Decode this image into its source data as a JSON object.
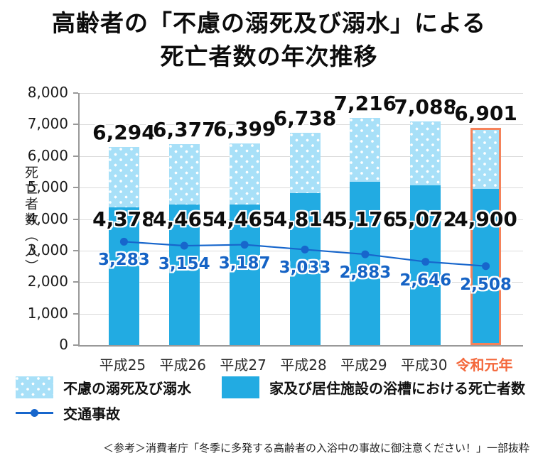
{
  "title": {
    "line1": "高齢者の「不慮の溺死及び溺水」による",
    "line2": "死亡者数の年次推移"
  },
  "chart_data": {
    "type": "bar+line",
    "title": "高齢者の「不慮の溺死及び溺水」による死亡者数の年次推移",
    "categories": [
      "平成25",
      "平成26",
      "平成27",
      "平成28",
      "平成29",
      "平成30",
      "令和元年"
    ],
    "series": [
      {
        "name": "不慮の溺死及び溺水",
        "role": "stacked-bar-total",
        "values": [
          6294,
          6377,
          6399,
          6738,
          7216,
          7088,
          6901
        ]
      },
      {
        "name": "家及び居住施設の浴槽における死亡者数",
        "role": "stacked-bar-lower-segment",
        "values": [
          4378,
          4465,
          4465,
          4814,
          5176,
          5072,
          4900
        ]
      },
      {
        "name": "交通事故",
        "role": "line",
        "values": [
          3283,
          3154,
          3187,
          3033,
          2883,
          2646,
          2508
        ]
      }
    ],
    "ylabel": "死亡者数（人）",
    "xlabel": "",
    "ylim": [
      0,
      8000
    ],
    "ytick_step": 1000,
    "yticks": [
      0,
      1000,
      2000,
      3000,
      4000,
      5000,
      6000,
      7000,
      8000
    ],
    "grid": "horizontal",
    "highlight_index": 6,
    "legend_position": "bottom"
  },
  "legend": {
    "items": [
      {
        "label": "不慮の溺死及び溺水",
        "swatch": "dotted-light-blue"
      },
      {
        "label": "家及び居住施設の浴槽における死亡者数",
        "swatch": "solid-blue"
      },
      {
        "label": "交通事故",
        "swatch": "line-marker"
      }
    ]
  },
  "footer": {
    "text": "＜参考＞消費者庁「冬季に多発する高齢者の入浴中の事故に御注意ください！」一部抜粋"
  },
  "colors": {
    "bar_solid": "#22abe2",
    "bar_dotted_bg": "#a8e0f8",
    "bar_dot": "#ffffff",
    "line": "#1766cc",
    "line_value_label": "#1563c5",
    "total_value_label": "#0d0d0d",
    "highlight_border": "#f5825a",
    "highlight_text": "#f4683c",
    "gridline": "#dadada",
    "axis": "#999999"
  }
}
